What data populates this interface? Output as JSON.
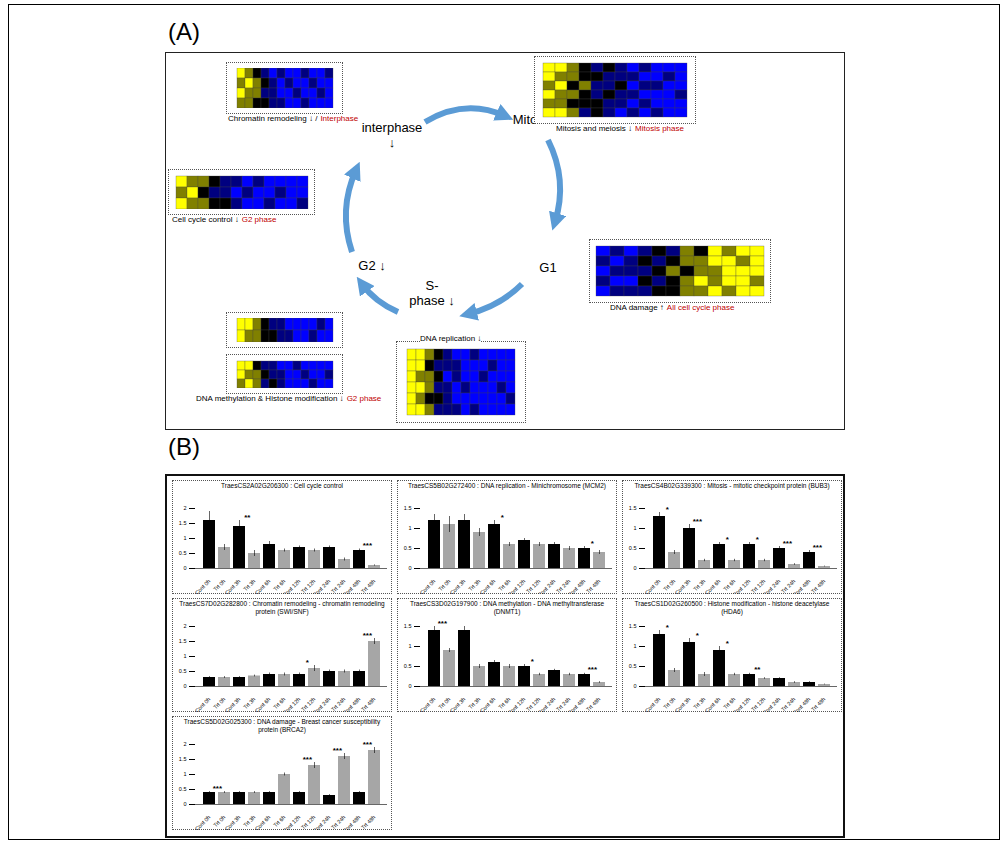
{
  "panel_a": {
    "label": "(A)",
    "phases": [
      {
        "lines": [
          "interphase",
          "↓"
        ]
      },
      {
        "lines": [
          "Mitosis ↓"
        ]
      },
      {
        "lines": [
          "G1"
        ]
      },
      {
        "lines": [
          "S-",
          "phase ↓"
        ]
      },
      {
        "lines": [
          "G2 ↓"
        ]
      }
    ],
    "color_range": [
      -2,
      2
    ],
    "heatmaps": [
      {
        "caption": "Chromatin remodeling ↓ /",
        "phase": "Interphase",
        "cells": [
          [
            2,
            1,
            0,
            -1,
            -2,
            -1,
            -2,
            -2,
            -1,
            -2,
            -2,
            -1
          ],
          [
            1,
            2,
            1,
            0,
            -1,
            -2,
            -1,
            -2,
            -2,
            -1,
            -2,
            -2
          ],
          [
            2,
            1,
            1,
            -1,
            -1,
            -2,
            -2,
            -1,
            -2,
            -2,
            -1,
            -2
          ],
          [
            1,
            1,
            0,
            0,
            -1,
            -1,
            -2,
            -2,
            -1,
            -2,
            -2,
            -2
          ]
        ]
      },
      {
        "caption": "Mitosis and meiosis ↓",
        "phase": "Mitosis phase",
        "cells": [
          [
            2,
            2,
            1,
            0,
            -1,
            0,
            -1,
            -2,
            -1,
            -2,
            -2,
            -2
          ],
          [
            2,
            1,
            1,
            0,
            0,
            -1,
            -1,
            -1,
            -2,
            -2,
            -1,
            -2
          ],
          [
            1,
            2,
            0,
            1,
            -1,
            -1,
            0,
            -2,
            -1,
            -1,
            -2,
            -2
          ],
          [
            2,
            1,
            1,
            0,
            -1,
            0,
            -1,
            -1,
            -2,
            -2,
            -2,
            -1
          ],
          [
            1,
            1,
            0,
            0,
            0,
            -1,
            -1,
            -2,
            -1,
            -2,
            -2,
            -2
          ],
          [
            2,
            2,
            1,
            -1,
            0,
            -1,
            -2,
            -1,
            -2,
            -1,
            -2,
            -2
          ]
        ]
      },
      {
        "caption": "Cell cycle control ↓",
        "phase": "G2 phase",
        "cells": [
          [
            2,
            1,
            1,
            0,
            -1,
            -1,
            -2,
            -1,
            -2,
            -2,
            -2,
            -2
          ],
          [
            1,
            2,
            0,
            -1,
            -1,
            -2,
            -1,
            -2,
            -2,
            -1,
            -2,
            -2
          ],
          [
            2,
            1,
            1,
            0,
            0,
            -1,
            -2,
            -2,
            -1,
            -2,
            -2,
            -1
          ]
        ]
      },
      {
        "cells": [
          [
            2,
            2,
            1,
            0,
            -1,
            -1,
            -2,
            -2,
            -2,
            -2,
            -1,
            -2
          ],
          [
            2,
            1,
            1,
            0,
            0,
            -1,
            -1,
            -2,
            -2,
            -1,
            -2,
            -2
          ]
        ]
      },
      {
        "caption": "DNA methylation & Histone modification ↓",
        "phase": "G2 phase",
        "cells": [
          [
            2,
            2,
            0,
            -1,
            -1,
            -2,
            -2,
            -1,
            -2,
            -2,
            -2,
            -2
          ],
          [
            2,
            1,
            1,
            0,
            -1,
            -1,
            -2,
            -2,
            -1,
            -2,
            -2,
            -1
          ],
          [
            1,
            2,
            1,
            -1,
            0,
            -1,
            -2,
            -2,
            -2,
            -1,
            -2,
            -2
          ]
        ]
      },
      {
        "caption": "DNA replication ↓",
        "cells": [
          [
            2,
            2,
            1,
            0,
            -1,
            -2,
            -2,
            -1,
            -2,
            -2,
            -2,
            -2
          ],
          [
            2,
            2,
            0,
            -1,
            -1,
            -1,
            -2,
            -2,
            -2,
            -1,
            -2,
            -2
          ],
          [
            2,
            1,
            1,
            0,
            -2,
            -1,
            -2,
            -2,
            -1,
            -2,
            -2,
            -2
          ],
          [
            2,
            2,
            1,
            -1,
            -1,
            -2,
            -1,
            -2,
            -2,
            -2,
            -1,
            -2
          ],
          [
            2,
            1,
            0,
            0,
            -1,
            -2,
            -2,
            -2,
            -2,
            -2,
            -2,
            -1
          ],
          [
            2,
            2,
            1,
            -1,
            -1,
            -1,
            -2,
            -1,
            -2,
            -2,
            -2,
            -2
          ]
        ]
      },
      {
        "caption": "DNA damage ↑",
        "phase": "All cell cycle phase",
        "cells": [
          [
            -2,
            -1,
            -2,
            -1,
            0,
            -1,
            1,
            0,
            2,
            1,
            2,
            2
          ],
          [
            -1,
            -2,
            -1,
            0,
            -1,
            0,
            1,
            1,
            2,
            2,
            1,
            2
          ],
          [
            -2,
            -1,
            -1,
            -1,
            0,
            1,
            0,
            1,
            1,
            2,
            2,
            2
          ],
          [
            -1,
            -2,
            -2,
            0,
            -1,
            0,
            1,
            2,
            1,
            2,
            2,
            1
          ],
          [
            -2,
            -1,
            -1,
            -1,
            0,
            0,
            1,
            1,
            2,
            1,
            2,
            2
          ]
        ]
      }
    ]
  },
  "panel_b": {
    "label": "(B)"
  },
  "chart_data": [
    {
      "type": "bar",
      "title": "TraesCS2A02G206300 : Cell cycle control",
      "categories": [
        "Cont 0h",
        "Trt 0h",
        "Cont 3h",
        "Trt 3h",
        "Cont 6h",
        "Trt 6h",
        "Cont 12h",
        "Trt 12h",
        "Cont 24h",
        "Trt 24h",
        "Cont 48h",
        "Trt 48h"
      ],
      "values": [
        1.6,
        0.7,
        1.4,
        0.5,
        0.8,
        0.6,
        0.7,
        0.6,
        0.7,
        0.3,
        0.6,
        0.1
      ],
      "errors": [
        0.3,
        0.1,
        0.2,
        0.1,
        0.1,
        0.05,
        0.05,
        0.05,
        0.05,
        0.05,
        0.05,
        0.02
      ],
      "colors": [
        "#000000",
        "#a6a6a6",
        "#000000",
        "#a6a6a6",
        "#000000",
        "#a6a6a6",
        "#000000",
        "#a6a6a6",
        "#000000",
        "#a6a6a6",
        "#000000",
        "#a6a6a6"
      ],
      "annotations": [
        {
          "pair": 1,
          "text": "**"
        },
        {
          "pair": 5,
          "text": "***"
        }
      ],
      "ylim": [
        0,
        2
      ],
      "yticks": [
        0,
        0.5,
        1,
        1.5,
        2
      ]
    },
    {
      "type": "bar",
      "title": "TraesCS5B02G272400 : DNA replication - Minichromosome (MCM2)",
      "categories": [
        "Cont 0h",
        "Trt 0h",
        "Cont 3h",
        "Trt 3h",
        "Cont 6h",
        "Trt 6h",
        "Cont 12h",
        "Trt 12h",
        "Cont 24h",
        "Trt 24h",
        "Cont 48h",
        "Trt 48h"
      ],
      "values": [
        1.2,
        1.1,
        1.2,
        0.9,
        1.1,
        0.6,
        0.7,
        0.6,
        0.6,
        0.5,
        0.5,
        0.4
      ],
      "errors": [
        0.15,
        0.2,
        0.15,
        0.1,
        0.1,
        0.05,
        0.05,
        0.05,
        0.05,
        0.05,
        0.05,
        0.05
      ],
      "colors": [
        "#000000",
        "#a6a6a6",
        "#000000",
        "#a6a6a6",
        "#000000",
        "#a6a6a6",
        "#000000",
        "#a6a6a6",
        "#000000",
        "#a6a6a6",
        "#000000",
        "#a6a6a6"
      ],
      "annotations": [
        {
          "pair": 2,
          "text": "*"
        },
        {
          "pair": 5,
          "text": "*"
        }
      ],
      "ylim": [
        0,
        1.5
      ],
      "yticks": [
        0,
        0.5,
        1,
        1.5
      ]
    },
    {
      "type": "bar",
      "title": "TraesCS4B02G339300 : Mitosis - mitotic checkpoint protein (BUB3)",
      "categories": [
        "Cont 0h",
        "Trt 0h",
        "Cont 3h",
        "Trt 3h",
        "Cont 6h",
        "Trt 6h",
        "Cont 12h",
        "Trt 12h",
        "Cont 24h",
        "Trt 24h",
        "Cont 48h",
        "Trt 48h"
      ],
      "values": [
        1.3,
        0.4,
        1.0,
        0.2,
        0.6,
        0.2,
        0.6,
        0.2,
        0.5,
        0.1,
        0.4,
        0.05
      ],
      "errors": [
        0.1,
        0.05,
        0.1,
        0.03,
        0.05,
        0.03,
        0.05,
        0.03,
        0.05,
        0.02,
        0.05,
        0.01
      ],
      "colors": [
        "#000000",
        "#a6a6a6",
        "#000000",
        "#a6a6a6",
        "#000000",
        "#a6a6a6",
        "#000000",
        "#a6a6a6",
        "#000000",
        "#a6a6a6",
        "#000000",
        "#a6a6a6"
      ],
      "annotations": [
        {
          "pair": 0,
          "text": "*"
        },
        {
          "pair": 1,
          "text": "***"
        },
        {
          "pair": 2,
          "text": "*"
        },
        {
          "pair": 3,
          "text": "*"
        },
        {
          "pair": 4,
          "text": "***"
        },
        {
          "pair": 5,
          "text": "***"
        }
      ],
      "ylim": [
        0,
        1.5
      ],
      "yticks": [
        0,
        0.5,
        1,
        1.5
      ]
    },
    {
      "type": "bar",
      "title": "TraesCS7D02G282800 : Chromatin remodeling - chromatin remodeling protein (SWI/SNF)",
      "categories": [
        "Cont 0h",
        "Trt 0h",
        "Cont 3h",
        "Trt 3h",
        "Cont 6h",
        "Trt 6h",
        "Cont 12h",
        "Trt 12h",
        "Cont 24h",
        "Trt 24h",
        "Cont 48h",
        "Trt 48h"
      ],
      "values": [
        0.3,
        0.3,
        0.3,
        0.35,
        0.4,
        0.4,
        0.4,
        0.6,
        0.5,
        0.5,
        0.5,
        1.5
      ],
      "errors": [
        0.03,
        0.03,
        0.03,
        0.03,
        0.05,
        0.05,
        0.05,
        0.1,
        0.05,
        0.05,
        0.05,
        0.1
      ],
      "colors": [
        "#000000",
        "#a6a6a6",
        "#000000",
        "#a6a6a6",
        "#000000",
        "#a6a6a6",
        "#000000",
        "#a6a6a6",
        "#000000",
        "#a6a6a6",
        "#000000",
        "#a6a6a6"
      ],
      "annotations": [
        {
          "pair": 3,
          "text": "*"
        },
        {
          "pair": 5,
          "text": "***"
        }
      ],
      "ylim": [
        0,
        2
      ],
      "yticks": [
        0,
        0.5,
        1,
        1.5,
        2
      ]
    },
    {
      "type": "bar",
      "title": "TraesCS3D02G197900 : DNA methylation - DNA methyltransferase (DNMT1)",
      "categories": [
        "Cont 0h",
        "Trt 0h",
        "Cont 3h",
        "Trt 3h",
        "Cont 6h",
        "Trt 6h",
        "Cont 12h",
        "Trt 12h",
        "Cont 24h",
        "Trt 24h",
        "Cont 48h",
        "Trt 48h"
      ],
      "values": [
        1.4,
        0.9,
        1.4,
        0.5,
        0.6,
        0.5,
        0.5,
        0.3,
        0.4,
        0.3,
        0.3,
        0.1
      ],
      "errors": [
        0.1,
        0.05,
        0.1,
        0.05,
        0.05,
        0.05,
        0.05,
        0.03,
        0.03,
        0.03,
        0.03,
        0.02
      ],
      "colors": [
        "#000000",
        "#a6a6a6",
        "#000000",
        "#a6a6a6",
        "#000000",
        "#a6a6a6",
        "#000000",
        "#a6a6a6",
        "#000000",
        "#a6a6a6",
        "#000000",
        "#a6a6a6"
      ],
      "annotations": [
        {
          "pair": 0,
          "text": "***"
        },
        {
          "pair": 3,
          "text": "*"
        },
        {
          "pair": 5,
          "text": "***"
        }
      ],
      "ylim": [
        0,
        1.5
      ],
      "yticks": [
        0,
        0.5,
        1,
        1.5
      ]
    },
    {
      "type": "bar",
      "title": "TraesCS1D02G260500 : Histone modification - histone deacetylase (HDA6)",
      "categories": [
        "Cont 0h",
        "Trt 0h",
        "Cont 3h",
        "Trt 3h",
        "Cont 6h",
        "Trt 6h",
        "Cont 12h",
        "Trt 12h",
        "Cont 24h",
        "Trt 24h",
        "Cont 48h",
        "Trt 48h"
      ],
      "values": [
        1.3,
        0.4,
        1.1,
        0.3,
        0.9,
        0.3,
        0.3,
        0.2,
        0.2,
        0.1,
        0.1,
        0.05
      ],
      "errors": [
        0.1,
        0.05,
        0.1,
        0.05,
        0.1,
        0.03,
        0.03,
        0.02,
        0.02,
        0.02,
        0.02,
        0.01
      ],
      "colors": [
        "#000000",
        "#a6a6a6",
        "#000000",
        "#a6a6a6",
        "#000000",
        "#a6a6a6",
        "#000000",
        "#a6a6a6",
        "#000000",
        "#a6a6a6",
        "#000000",
        "#a6a6a6"
      ],
      "annotations": [
        {
          "pair": 0,
          "text": "*"
        },
        {
          "pair": 1,
          "text": "*"
        },
        {
          "pair": 2,
          "text": "*"
        },
        {
          "pair": 3,
          "text": "**"
        }
      ],
      "ylim": [
        0,
        1.5
      ],
      "yticks": [
        0,
        0.5,
        1,
        1.5
      ]
    },
    {
      "type": "bar",
      "title": "TraesCS5D02G025300 : DNA damage - Breast cancer susceptibility protein (BRCA2)",
      "categories": [
        "Cont 0h",
        "Trt 0h",
        "Cont 3h",
        "Trt 3h",
        "Cont 6h",
        "Trt 6h",
        "Cont 12h",
        "Trt 12h",
        "Cont 24h",
        "Trt 24h",
        "Cont 48h",
        "Trt 48h"
      ],
      "values": [
        0.4,
        0.4,
        0.4,
        0.4,
        0.4,
        1.0,
        0.4,
        1.3,
        0.3,
        1.6,
        0.4,
        1.8
      ],
      "errors": [
        0.03,
        0.03,
        0.03,
        0.03,
        0.03,
        0.05,
        0.03,
        0.1,
        0.03,
        0.1,
        0.03,
        0.1
      ],
      "colors": [
        "#000000",
        "#a6a6a6",
        "#000000",
        "#a6a6a6",
        "#000000",
        "#a6a6a6",
        "#000000",
        "#a6a6a6",
        "#000000",
        "#a6a6a6",
        "#000000",
        "#a6a6a6"
      ],
      "annotations": [
        {
          "pair": 0,
          "text": "***"
        },
        {
          "pair": 3,
          "text": "***"
        },
        {
          "pair": 4,
          "text": "***"
        },
        {
          "pair": 5,
          "text": "***"
        }
      ],
      "ylim": [
        0,
        2
      ],
      "yticks": [
        0,
        0.5,
        1,
        1.5,
        2
      ]
    }
  ]
}
